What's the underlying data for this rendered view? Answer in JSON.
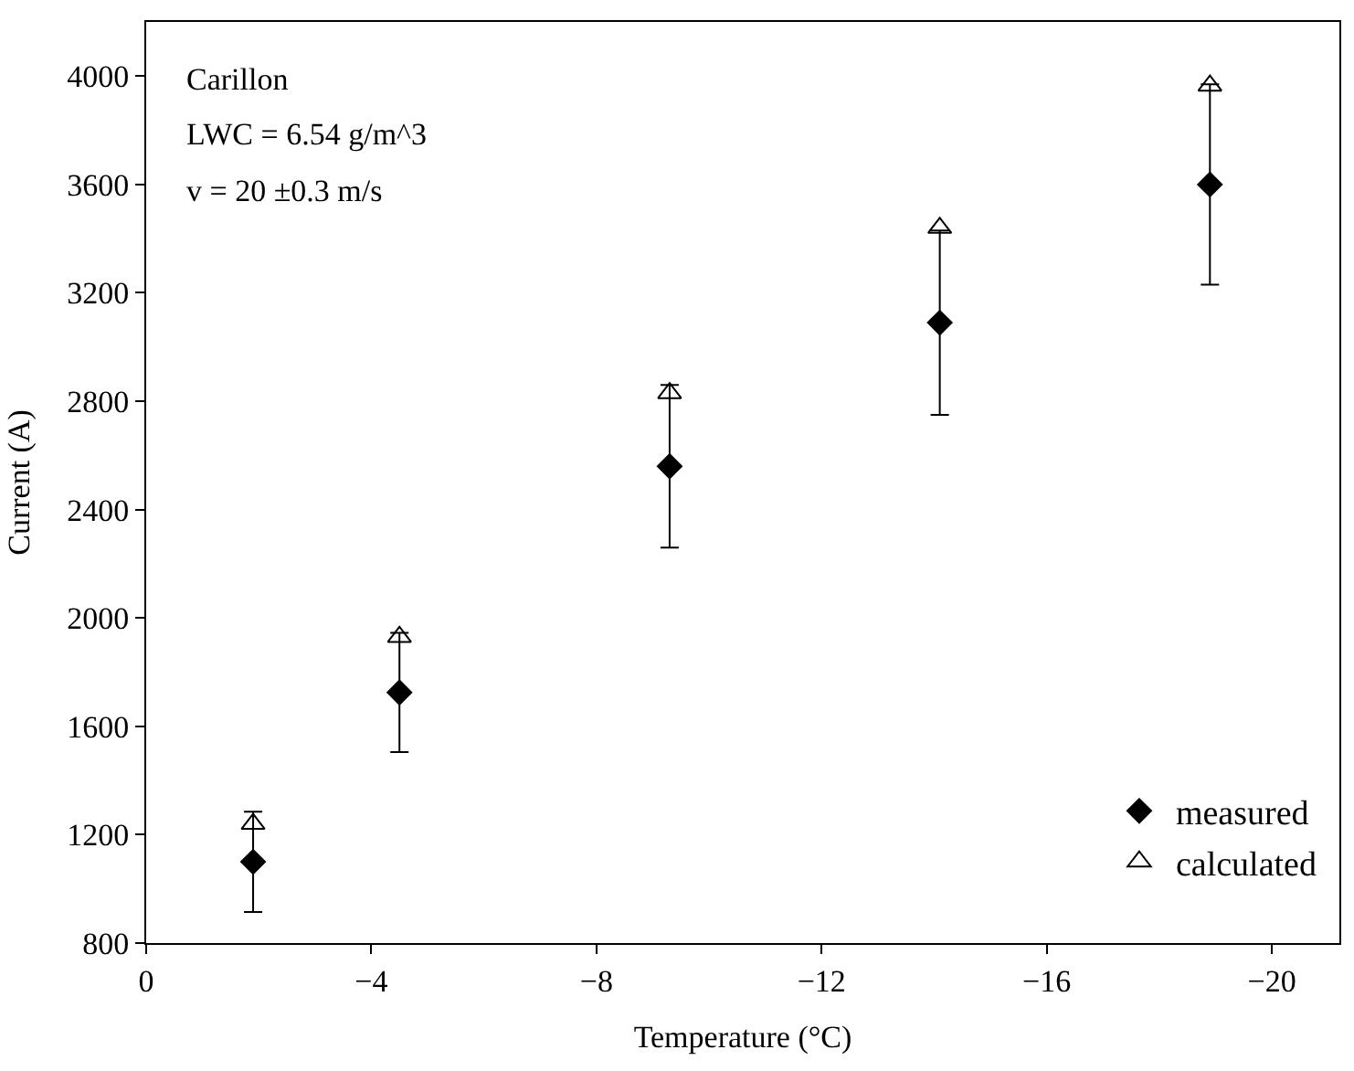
{
  "chart_data": {
    "type": "scatter",
    "xlabel": "Temperature (°C)",
    "ylabel": "Current (A)",
    "annotations": [
      "Carillon",
      "LWC = 6.54 g/m^3",
      "v = 20 ±0.3 m/s"
    ],
    "xlim": [
      0,
      -21.2
    ],
    "xticks": [
      0,
      {
        "value": -4,
        "label": "−4"
      },
      {
        "value": -8,
        "label": "−8"
      },
      {
        "value": -12,
        "label": "−12"
      },
      {
        "value": -16,
        "label": "−16"
      },
      {
        "value": -20,
        "label": "−20"
      }
    ],
    "ylim": [
      800,
      4200
    ],
    "yticks": [
      800,
      1200,
      1600,
      2000,
      2400,
      2800,
      3200,
      3600,
      4000
    ],
    "legend": "bottom right",
    "series": [
      {
        "name": "measured",
        "color": "#000000",
        "marker": "diamond",
        "x": [
          -1.9,
          -4.5,
          -9.3,
          -14.1,
          -18.9
        ],
        "values": [
          1100,
          1725,
          2560,
          3090,
          3600
        ],
        "errors": [
          185,
          220,
          300,
          340,
          370
        ]
      },
      {
        "name": "calculated",
        "color": "#000000",
        "marker": "triangle",
        "x": [
          -1.9,
          -4.5,
          -9.3,
          -14.1,
          -18.9
        ],
        "values": [
          1240,
          1930,
          2830,
          3440,
          3965
        ]
      }
    ]
  }
}
